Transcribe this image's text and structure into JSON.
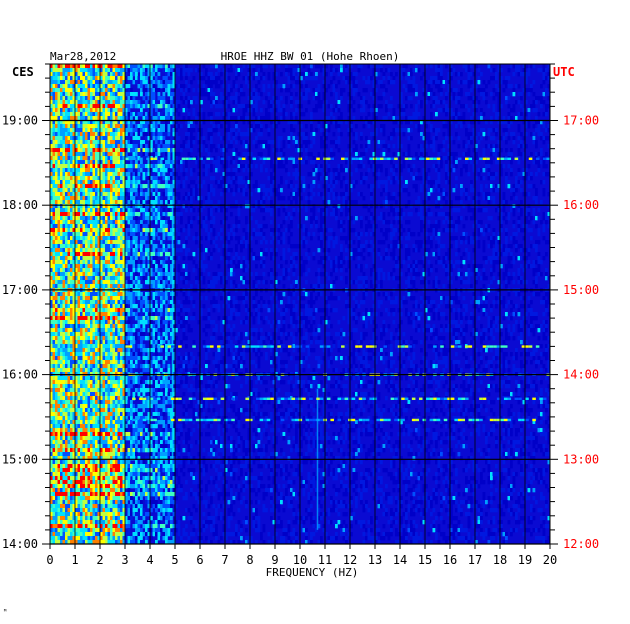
{
  "header": {
    "date": "Mar28,2012",
    "station_title": "HROE HHZ BW 01 (Hohe Rhoen)"
  },
  "footer": {
    "mark": "ᴹ"
  },
  "colors": {
    "background": "#0a0ad2",
    "grid": "#000000",
    "utc_text": "#ff0000",
    "ces_text": "#000000",
    "palette": [
      "#0000c8",
      "#0018e0",
      "#0050ff",
      "#00a0ff",
      "#00e0ff",
      "#40ffc0",
      "#c0ff40",
      "#ffff00",
      "#ff8000",
      "#ff0000"
    ]
  },
  "chart_data": {
    "type": "heatmap",
    "title": "HROE HHZ BW 01 (Hohe Rhoen)",
    "date": "Mar28,2012",
    "xlabel": "FREQUENCY (HZ)",
    "xlim": [
      0,
      20
    ],
    "x_ticks": [
      "0",
      "1",
      "2",
      "3",
      "4",
      "5",
      "6",
      "7",
      "8",
      "9",
      "10",
      "11",
      "12",
      "13",
      "14",
      "15",
      "16",
      "17",
      "18",
      "19",
      "20"
    ],
    "left_axis_label": "CES",
    "left_ticks": [
      "19:00",
      "18:00",
      "17:00",
      "16:00",
      "15:00",
      "14:00"
    ],
    "right_axis_label": "UTC",
    "right_ticks": [
      "17:00",
      "16:00",
      "15:00",
      "14:00",
      "13:00",
      "12:00"
    ],
    "time_range_ces": [
      "14:00",
      "19:40"
    ],
    "features": {
      "strong_energy_band_hz": [
        0,
        3
      ],
      "secondary_band_hz": [
        3,
        5
      ],
      "persistent_line_hz": 4.9,
      "narrow_line_hz": 10.7,
      "notable_horizontal_events_ces": [
        "18:33",
        "16:20",
        "16:00",
        "15:43",
        "15:28"
      ]
    }
  }
}
